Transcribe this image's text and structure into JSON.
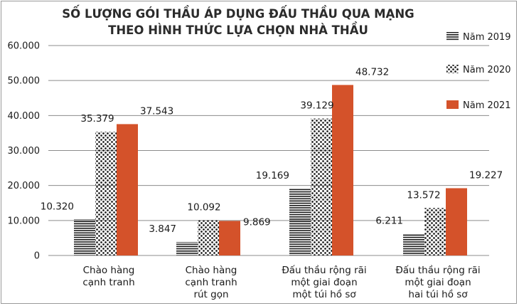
{
  "chart_data": {
    "type": "bar",
    "title_lines": [
      "SỐ LƯỢNG GÓI THẦU ÁP DỤNG ĐẤU THẦU QUA MẠNG",
      "THEO HÌNH THỨC LỰA CHỌN NHÀ THẦU"
    ],
    "xlabel": "",
    "ylabel": "",
    "ylim": [
      0,
      60000
    ],
    "yticks": [
      0,
      10000,
      20000,
      30000,
      40000,
      50000,
      60000
    ],
    "ytick_labels": [
      "0",
      "10.000",
      "20.000",
      "30.000",
      "40.000",
      "50.000",
      "60.000"
    ],
    "grid": true,
    "legend_position": "right",
    "categories": [
      [
        "Chào hàng",
        "cạnh tranh"
      ],
      [
        "Chào hàng",
        "cạnh tranh",
        "rút gọn"
      ],
      [
        "Đấu thầu rộng rãi",
        "một giai đoạn",
        "một túi hồ sơ"
      ],
      [
        "Đấu thầu rộng rãi",
        "một giai đoạn",
        "hai túi hồ sơ"
      ]
    ],
    "series": [
      {
        "name": "Năm 2019",
        "pattern": "horizontal-lines",
        "color": "#1a1a1a",
        "values": [
          10320,
          3847,
          19169,
          6211
        ],
        "labels": [
          "10.320",
          "3.847",
          "19.169",
          "6.211"
        ]
      },
      {
        "name": "Năm 2020",
        "pattern": "dots",
        "color": "#1a1a1a",
        "values": [
          35379,
          10092,
          39129,
          13572
        ],
        "labels": [
          "35.379",
          "10.092",
          "39.129",
          "13.572"
        ]
      },
      {
        "name": "Năm 2021",
        "pattern": "solid",
        "color": "#d4522a",
        "values": [
          37543,
          9869,
          48732,
          19227
        ],
        "labels": [
          "37.543",
          "9.869",
          "48.732",
          "19.227"
        ]
      }
    ]
  }
}
